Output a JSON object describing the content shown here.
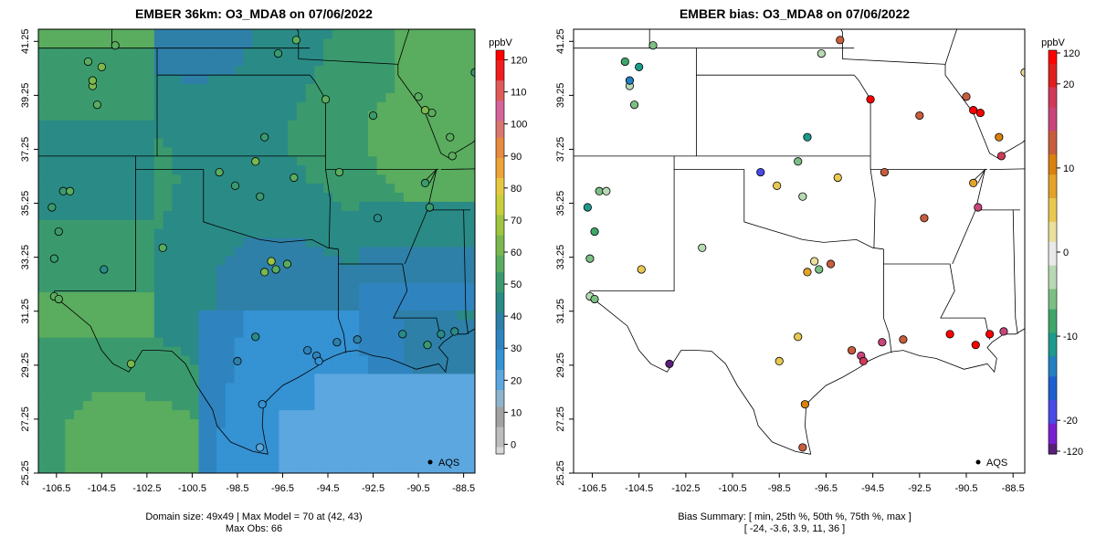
{
  "colors": {
    "model_colormap": [
      "#d8d8d8",
      "#bdbdbd",
      "#a2a2a2",
      "#8fb5cc",
      "#5ca7e0",
      "#3592d3",
      "#2f84bf",
      "#2e80a8",
      "#2a8a86",
      "#3a9a6e",
      "#5aac5e",
      "#7ab84f",
      "#9ec540",
      "#c8cf3a",
      "#e6c840",
      "#eda33a",
      "#e88a3f",
      "#d9776f",
      "#d4649a",
      "#e05a5a",
      "#ef1f1f",
      "#ff0000"
    ],
    "bias_colormap": [
      "#5a1f7a",
      "#7a1fd0",
      "#4a4ae6",
      "#1e5fd0",
      "#2280c0",
      "#1d9a8c",
      "#3ea66a",
      "#7cbf84",
      "#b7d9b4",
      "#e9e9e9",
      "#eadf9c",
      "#e8c850",
      "#e3a32a",
      "#d9800f",
      "#c75d3d",
      "#c8457a",
      "#cf3a58",
      "#e01f1f",
      "#ff0000"
    ],
    "map_line": "#000000",
    "obs_outline": "#000000"
  },
  "left": {
    "title": "EMBER 36km: O3_MDA8 on 07/06/2022",
    "unit": "ppbV",
    "legend_label": "AQS",
    "footer_line1": "Domain size: 49x49 | Max Model = 70 at (42, 43)",
    "footer_line2": "Max Obs: 66"
  },
  "right": {
    "title": "EMBER bias: O3_MDA8 on 07/06/2022",
    "unit": "ppbV",
    "legend_label": "AQS",
    "footer_line1": "Bias Summary: [ min, 25th %, 50th %, 75th %, max ]",
    "footer_line2": "[ -24,   -3.6,   3.9,   11,   36 ]"
  },
  "chart_data": [
    {
      "type": "heatmap",
      "title": "EMBER 36km: O3_MDA8 on 07/06/2022",
      "x_ticks": [
        "-106.5",
        "-104.5",
        "-102.5",
        "-100.5",
        "-98.5",
        "-96.5",
        "-94.5",
        "-92.5",
        "-90.5",
        "-88.5"
      ],
      "y_ticks": [
        "25.25",
        "27.25",
        "29.25",
        "31.25",
        "33.25",
        "35.25",
        "37.25",
        "39.25",
        "41.25"
      ],
      "xlim": [
        -107.3,
        -88.0
      ],
      "ylim": [
        25.25,
        41.7
      ],
      "colorbar": {
        "label": "ppbV",
        "ticks": [
          "0",
          "10",
          "20",
          "30",
          "40",
          "50",
          "60",
          "70",
          "80",
          "90",
          "100",
          "110",
          "120"
        ],
        "range": [
          -3,
          123
        ]
      },
      "grid": false,
      "legend": "bottom-right",
      "legend_entries": [
        "AQS"
      ],
      "model_max_ppbv": 70,
      "obs_max_ppbv": 66,
      "domain_size": "49x49"
    },
    {
      "type": "scatter",
      "title": "EMBER bias: O3_MDA8 on 07/06/2022",
      "x_ticks": [
        "-106.5",
        "-104.5",
        "-102.5",
        "-100.5",
        "-98.5",
        "-96.5",
        "-94.5",
        "-92.5",
        "-90.5",
        "-88.5"
      ],
      "y_ticks": [
        "25.25",
        "27.25",
        "29.25",
        "31.25",
        "33.25",
        "35.25",
        "37.25",
        "39.25",
        "41.25"
      ],
      "xlim": [
        -107.3,
        -88.0
      ],
      "ylim": [
        25.25,
        41.7
      ],
      "colorbar": {
        "label": "ppbV",
        "ticks": [
          "-20",
          "-10",
          "0",
          "10",
          "20"
        ],
        "tick_values": [
          -20,
          -10,
          0,
          10,
          20
        ],
        "top_label": "120",
        "bottom_label": "-120",
        "range": [
          -24,
          24
        ]
      },
      "legend": "bottom-right",
      "legend_entries": [
        "AQS"
      ],
      "bias_summary": {
        "min": -24,
        "p25": -3.6,
        "p50": 3.9,
        "p75": 11,
        "max": 36
      }
    }
  ]
}
